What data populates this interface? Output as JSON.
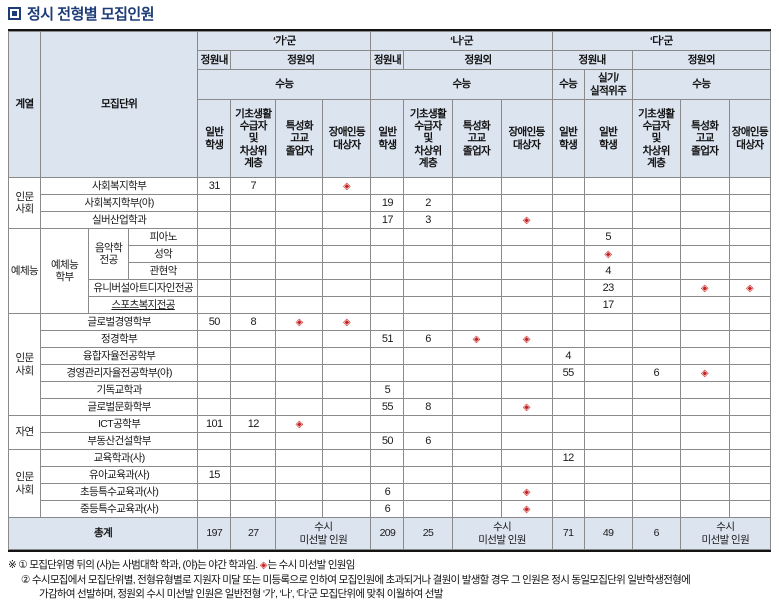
{
  "title": "정시 전형별 모집인원",
  "colors": {
    "title_navy": "#1e3c78",
    "header_bg": "#dce4f0",
    "diamond_red": "#c51f1f"
  },
  "diamond_glyph": "◈",
  "header": {
    "col_category": "계열",
    "col_unit": "모집단위",
    "groups": [
      {
        "label": "‘가’군"
      },
      {
        "label": "‘나’군"
      },
      {
        "label": "‘다’군"
      }
    ],
    "quota_in": "정원내",
    "quota_out": "정원외",
    "csat": "수능",
    "practical": "실기/\n실적위주",
    "cols": {
      "general": "일반\n학생",
      "basic": "기초생활\n수급자\n및\n차상위\n계층",
      "vocational": "특성화\n고교\n졸업자",
      "disabled": "장애인등\n대상자"
    }
  },
  "rows": [
    {
      "cat": {
        "text": "인문\n사회",
        "span": 3
      },
      "units": [
        {
          "text": "사회복지학부",
          "colspan": 3
        }
      ],
      "values": [
        "31",
        "7",
        "",
        "◆",
        "",
        "",
        "",
        "",
        "",
        "",
        "",
        "",
        ""
      ]
    },
    {
      "units": [
        {
          "text": "사회복지학부(야)",
          "colspan": 3
        }
      ],
      "values": [
        "",
        "",
        "",
        "",
        "19",
        "2",
        "",
        "",
        "",
        "",
        "",
        "",
        ""
      ]
    },
    {
      "units": [
        {
          "text": "실버산업학과",
          "colspan": 3
        }
      ],
      "values": [
        "",
        "",
        "",
        "",
        "17",
        "3",
        "",
        "◆",
        "",
        "",
        "",
        "",
        ""
      ]
    },
    {
      "cat": {
        "text": "예체능",
        "span": 5
      },
      "units": [
        {
          "text": "예체능\n학부",
          "rowspan": 5
        },
        {
          "text": "음악학\n전공",
          "rowspan": 3
        },
        {
          "text": "피아노"
        }
      ],
      "values": [
        "",
        "",
        "",
        "",
        "",
        "",
        "",
        "",
        "",
        "5",
        "",
        "",
        ""
      ]
    },
    {
      "units": [
        {
          "text": "성악"
        }
      ],
      "values": [
        "",
        "",
        "",
        "",
        "",
        "",
        "",
        "",
        "",
        "◆",
        "",
        "",
        ""
      ]
    },
    {
      "units": [
        {
          "text": "관현악"
        }
      ],
      "values": [
        "",
        "",
        "",
        "",
        "",
        "",
        "",
        "",
        "",
        "4",
        "",
        "",
        ""
      ]
    },
    {
      "units": [
        {
          "text": "유니버설아트디자인전공",
          "colspan": 2
        }
      ],
      "values": [
        "",
        "",
        "",
        "",
        "",
        "",
        "",
        "",
        "",
        "23",
        "",
        "◆",
        "◆"
      ]
    },
    {
      "units": [
        {
          "text": "스포츠복지전공",
          "colspan": 2,
          "underline": true
        }
      ],
      "values": [
        "",
        "",
        "",
        "",
        "",
        "",
        "",
        "",
        "",
        "17",
        "",
        "",
        ""
      ]
    },
    {
      "cat": {
        "text": "인문\n사회",
        "span": 6
      },
      "units": [
        {
          "text": "글로벌경영학부",
          "colspan": 3
        }
      ],
      "values": [
        "50",
        "8",
        "◆",
        "◆",
        "",
        "",
        "",
        "",
        "",
        "",
        "",
        "",
        ""
      ]
    },
    {
      "units": [
        {
          "text": "정경학부",
          "colspan": 3
        }
      ],
      "values": [
        "",
        "",
        "",
        "",
        "51",
        "6",
        "◆",
        "◆",
        "",
        "",
        "",
        "",
        ""
      ]
    },
    {
      "units": [
        {
          "text": "융합자율전공학부",
          "colspan": 3
        }
      ],
      "values": [
        "",
        "",
        "",
        "",
        "",
        "",
        "",
        "",
        "4",
        "",
        "",
        "",
        ""
      ]
    },
    {
      "units": [
        {
          "text": "경영관리자율전공학부(야)",
          "colspan": 3
        }
      ],
      "values": [
        "",
        "",
        "",
        "",
        "",
        "",
        "",
        "",
        "55",
        "",
        "6",
        "◆",
        ""
      ]
    },
    {
      "units": [
        {
          "text": "기독교학과",
          "colspan": 3
        }
      ],
      "values": [
        "",
        "",
        "",
        "",
        "5",
        "",
        "",
        "",
        "",
        "",
        "",
        "",
        ""
      ]
    },
    {
      "units": [
        {
          "text": "글로벌문화학부",
          "colspan": 3
        }
      ],
      "values": [
        "",
        "",
        "",
        "",
        "55",
        "8",
        "",
        "◆",
        "",
        "",
        "",
        "",
        ""
      ]
    },
    {
      "cat": {
        "text": "자연",
        "span": 2
      },
      "units": [
        {
          "text": "ICT공학부",
          "colspan": 3
        }
      ],
      "values": [
        "101",
        "12",
        "◆",
        "",
        "",
        "",
        "",
        "",
        "",
        "",
        "",
        "",
        ""
      ]
    },
    {
      "units": [
        {
          "text": "부동산건설학부",
          "colspan": 3
        }
      ],
      "values": [
        "",
        "",
        "",
        "",
        "50",
        "6",
        "",
        "",
        "",
        "",
        "",
        "",
        ""
      ]
    },
    {
      "cat": {
        "text": "인문\n사회",
        "span": 4
      },
      "units": [
        {
          "text": "교육학과(사)",
          "colspan": 3
        }
      ],
      "values": [
        "",
        "",
        "",
        "",
        "",
        "",
        "",
        "",
        "12",
        "",
        "",
        "",
        ""
      ]
    },
    {
      "units": [
        {
          "text": "유아교육과(사)",
          "colspan": 3
        }
      ],
      "values": [
        "15",
        "",
        "",
        "",
        "",
        "",
        "",
        "",
        "",
        "",
        "",
        "",
        ""
      ]
    },
    {
      "units": [
        {
          "text": "초등특수교육과(사)",
          "colspan": 3
        }
      ],
      "values": [
        "",
        "",
        "",
        "",
        "6",
        "",
        "",
        "◆",
        "",
        "",
        "",
        "",
        ""
      ]
    },
    {
      "units": [
        {
          "text": "중등특수교육과(사)",
          "colspan": 3
        }
      ],
      "values": [
        "",
        "",
        "",
        "",
        "6",
        "",
        "",
        "◆",
        "",
        "",
        "",
        "",
        ""
      ]
    }
  ],
  "total_row": {
    "label": "총계",
    "ga_general": "197",
    "ga_basic": "27",
    "ga_note": "수시\n미선발 인원",
    "na_general": "209",
    "na_basic": "25",
    "na_note": "수시\n미선발 인원",
    "da_csat": "71",
    "da_practical": "49",
    "da_basic": "6",
    "da_note": "수시\n미선발 인원"
  },
  "footnotes": {
    "line1_pre": "※ ① 모집단위명 뒤의 (사)는 사범대학 학과, (야)는 야간 학과임. ",
    "line1_post": "는 수시 미선발 인원임",
    "line2": "② 수시모집에서 모집단위별, 전형유형별로 지원자 미달 또는 미등록으로 인하여 모집인원에 초과되거나 결원이 발생할 경우 그 인원은 정시 동일모집단위 일반학생전형에",
    "line3": "가감하여 선발하며, 정원외 수시 미선발 인원은 일반전형 ‘가’, ‘나’, ‘다’군 모집단위에 맞춰 이월하여 선발"
  }
}
